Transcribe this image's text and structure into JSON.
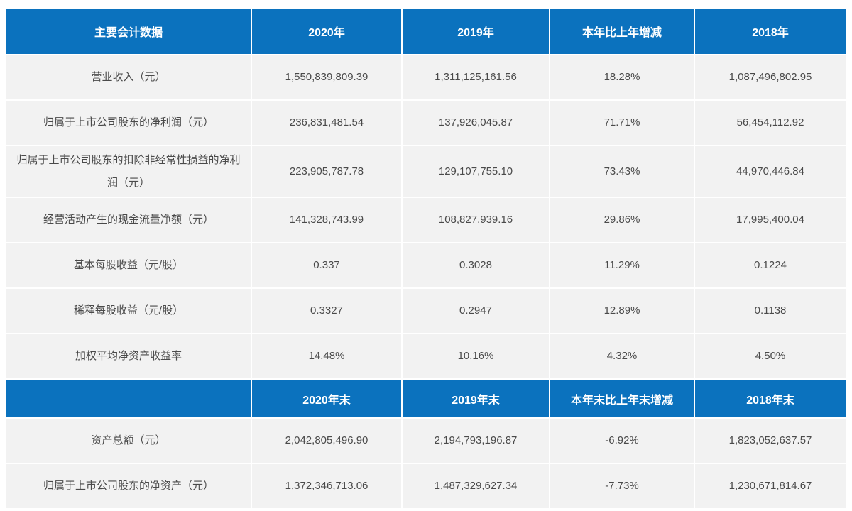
{
  "theme": {
    "header_bg": "#0b72be",
    "header_text": "#ffffff",
    "row_bg": "#f2f2f2",
    "body_text": "#4a4a4a"
  },
  "table1": {
    "headers": [
      "主要会计数据",
      "2020年",
      "2019年",
      "本年比上年增减",
      "2018年"
    ],
    "rows": [
      {
        "label": "营业收入（元）",
        "values": [
          "1,550,839,809.39",
          "1,311,125,161.56",
          "18.28%",
          "1,087,496,802.95"
        ]
      },
      {
        "label": "归属于上市公司股东的净利润（元）",
        "values": [
          "236,831,481.54",
          "137,926,045.87",
          "71.71%",
          "56,454,112.92"
        ]
      },
      {
        "label": "归属于上市公司股东的扣除非经常性损益的净利润（元）",
        "values": [
          "223,905,787.78",
          "129,107,755.10",
          "73.43%",
          "44,970,446.84"
        ]
      },
      {
        "label": "经营活动产生的现金流量净额（元）",
        "values": [
          "141,328,743.99",
          "108,827,939.16",
          "29.86%",
          "17,995,400.04"
        ]
      },
      {
        "label": "基本每股收益（元/股）",
        "values": [
          "0.337",
          "0.3028",
          "11.29%",
          "0.1224"
        ]
      },
      {
        "label": "稀释每股收益（元/股）",
        "values": [
          "0.3327",
          "0.2947",
          "12.89%",
          "0.1138"
        ]
      },
      {
        "label": "加权平均净资产收益率",
        "values": [
          "14.48%",
          "10.16%",
          "4.32%",
          "4.50%"
        ]
      }
    ]
  },
  "table2": {
    "headers": [
      "",
      "2020年末",
      "2019年末",
      "本年末比上年末增减",
      "2018年末"
    ],
    "rows": [
      {
        "label": "资产总额（元）",
        "values": [
          "2,042,805,496.90",
          "2,194,793,196.87",
          "-6.92%",
          "1,823,052,637.57"
        ]
      },
      {
        "label": "归属于上市公司股东的净资产（元）",
        "values": [
          "1,372,346,713.06",
          "1,487,329,627.34",
          "-7.73%",
          "1,230,671,814.67"
        ]
      }
    ]
  }
}
